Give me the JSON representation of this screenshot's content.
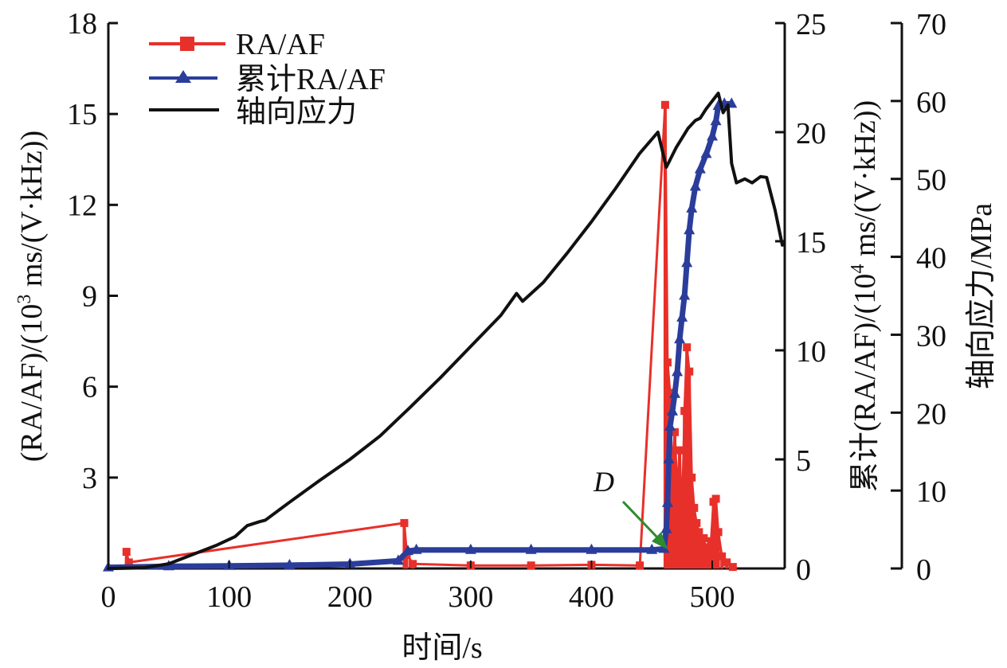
{
  "chart_data": {
    "type": "line",
    "title": "",
    "xlabel": "时间/s",
    "xlim": [
      0,
      560
    ],
    "x_ticks": [
      0,
      100,
      200,
      300,
      400,
      500
    ],
    "y_axes": [
      {
        "id": "left",
        "label": "(RA/AF)/(10³ ms/(V·kHz))",
        "label_parts": [
          "(RA/AF)/(10",
          "3",
          " ms/(V·kHz))"
        ],
        "lim": [
          0,
          18
        ],
        "ticks": [
          3,
          6,
          9,
          12,
          15,
          18
        ],
        "tick_labels": [
          "3",
          "6",
          "9",
          "12",
          "15",
          "18"
        ]
      },
      {
        "id": "right1",
        "label": "累计(RA/AF)/(10⁴ ms/(V·kHz))",
        "label_parts": [
          "累计(RA/AF)/(10",
          "4",
          " ms/(V·kHz))"
        ],
        "lim": [
          0,
          25
        ],
        "ticks": [
          0,
          5,
          10,
          15,
          20,
          25
        ],
        "tick_labels": [
          "0",
          "5",
          "10",
          "15",
          "20",
          "25"
        ]
      },
      {
        "id": "right2",
        "label": "轴向应力/MPa",
        "lim": [
          0,
          70
        ],
        "ticks": [
          0,
          10,
          20,
          30,
          40,
          50,
          60,
          70
        ],
        "tick_labels": [
          "0",
          "10",
          "20",
          "30",
          "40",
          "50",
          "60",
          "70"
        ]
      }
    ],
    "grid": false,
    "legend_position": "top-left",
    "series": [
      {
        "name": "RA/AF",
        "axis": "left",
        "color": "#e8302a",
        "marker": "square",
        "style": "stem",
        "points": [
          [
            15,
            0.55
          ],
          [
            17,
            0.2
          ],
          [
            245,
            1.5
          ],
          [
            247,
            0.5
          ],
          [
            252,
            0.15
          ],
          [
            300,
            0.1
          ],
          [
            350,
            0.1
          ],
          [
            400,
            0.12
          ],
          [
            440,
            0.1
          ],
          [
            461,
            15.3
          ],
          [
            463,
            6.8
          ],
          [
            465,
            5.8
          ],
          [
            467,
            3.0
          ],
          [
            469,
            4.5
          ],
          [
            471,
            2.5
          ],
          [
            473,
            3.9
          ],
          [
            475,
            1.6
          ],
          [
            477,
            5.2
          ],
          [
            479,
            7.3
          ],
          [
            481,
            6.5
          ],
          [
            483,
            3.0
          ],
          [
            485,
            2.0
          ],
          [
            487,
            1.5
          ],
          [
            489,
            1.2
          ],
          [
            491,
            0.8
          ],
          [
            493,
            1.0
          ],
          [
            495,
            0.6
          ],
          [
            497,
            0.7
          ],
          [
            499,
            0.9
          ],
          [
            501,
            2.2
          ],
          [
            503,
            2.3
          ],
          [
            505,
            1.2
          ],
          [
            508,
            0.4
          ],
          [
            512,
            0.2
          ],
          [
            517,
            0.05
          ]
        ]
      },
      {
        "name": "累计RA/AF",
        "axis": "right1",
        "color": "#2b3d9b",
        "marker": "triangle",
        "points": [
          [
            0,
            0.05
          ],
          [
            50,
            0.1
          ],
          [
            100,
            0.12
          ],
          [
            150,
            0.15
          ],
          [
            200,
            0.2
          ],
          [
            240,
            0.35
          ],
          [
            248,
            0.8
          ],
          [
            255,
            0.85
          ],
          [
            300,
            0.85
          ],
          [
            350,
            0.85
          ],
          [
            400,
            0.85
          ],
          [
            450,
            0.85
          ],
          [
            460,
            0.9
          ],
          [
            462,
            1.8
          ],
          [
            463,
            3.0
          ],
          [
            464,
            5.0
          ],
          [
            465,
            6.5
          ],
          [
            467,
            7.2
          ],
          [
            469,
            8.0
          ],
          [
            471,
            9.0
          ],
          [
            473,
            10.5
          ],
          [
            475,
            11.5
          ],
          [
            477,
            12.5
          ],
          [
            479,
            14.0
          ],
          [
            481,
            15.5
          ],
          [
            483,
            16.5
          ],
          [
            486,
            17.5
          ],
          [
            490,
            18.3
          ],
          [
            495,
            19.0
          ],
          [
            500,
            19.8
          ],
          [
            503,
            20.5
          ],
          [
            505,
            21.2
          ],
          [
            510,
            21.3
          ],
          [
            516,
            21.3
          ]
        ]
      },
      {
        "name": "轴向应力",
        "axis": "right2",
        "color": "#111111",
        "marker": "none",
        "points": [
          [
            0,
            0
          ],
          [
            30,
            0.1
          ],
          [
            50,
            0.6
          ],
          [
            70,
            1.8
          ],
          [
            90,
            3.0
          ],
          [
            105,
            4.1
          ],
          [
            115,
            5.5
          ],
          [
            125,
            6.0
          ],
          [
            130,
            6.2
          ],
          [
            150,
            8.5
          ],
          [
            175,
            11.3
          ],
          [
            200,
            14.0
          ],
          [
            225,
            17.0
          ],
          [
            250,
            20.7
          ],
          [
            275,
            24.5
          ],
          [
            300,
            28.5
          ],
          [
            325,
            32.5
          ],
          [
            338,
            35.3
          ],
          [
            343,
            34.3
          ],
          [
            360,
            36.7
          ],
          [
            380,
            40.5
          ],
          [
            400,
            44.5
          ],
          [
            420,
            48.8
          ],
          [
            440,
            53.3
          ],
          [
            455,
            56.0
          ],
          [
            462,
            51.5
          ],
          [
            470,
            54.0
          ],
          [
            480,
            56.5
          ],
          [
            486,
            57.5
          ],
          [
            490,
            57.8
          ],
          [
            495,
            59.0
          ],
          [
            505,
            61.0
          ],
          [
            509,
            58.5
          ],
          [
            513,
            59.5
          ],
          [
            516,
            52.0
          ],
          [
            520,
            49.5
          ],
          [
            527,
            50.0
          ],
          [
            533,
            49.5
          ],
          [
            540,
            50.3
          ],
          [
            545,
            50.2
          ],
          [
            552,
            46.0
          ],
          [
            558,
            41.5
          ]
        ]
      }
    ],
    "annotations": [
      {
        "text": "D",
        "x": 460,
        "y_left": 0.6,
        "arrow_color": "#2e8b2e"
      }
    ]
  },
  "legend": {
    "items": [
      {
        "label": "RA/AF",
        "color": "#e8302a",
        "marker": "square"
      },
      {
        "label": "累计RA/AF",
        "color": "#2b3d9b",
        "marker": "triangle"
      },
      {
        "label": "轴向应力",
        "color": "#111111",
        "marker": "none"
      }
    ]
  }
}
